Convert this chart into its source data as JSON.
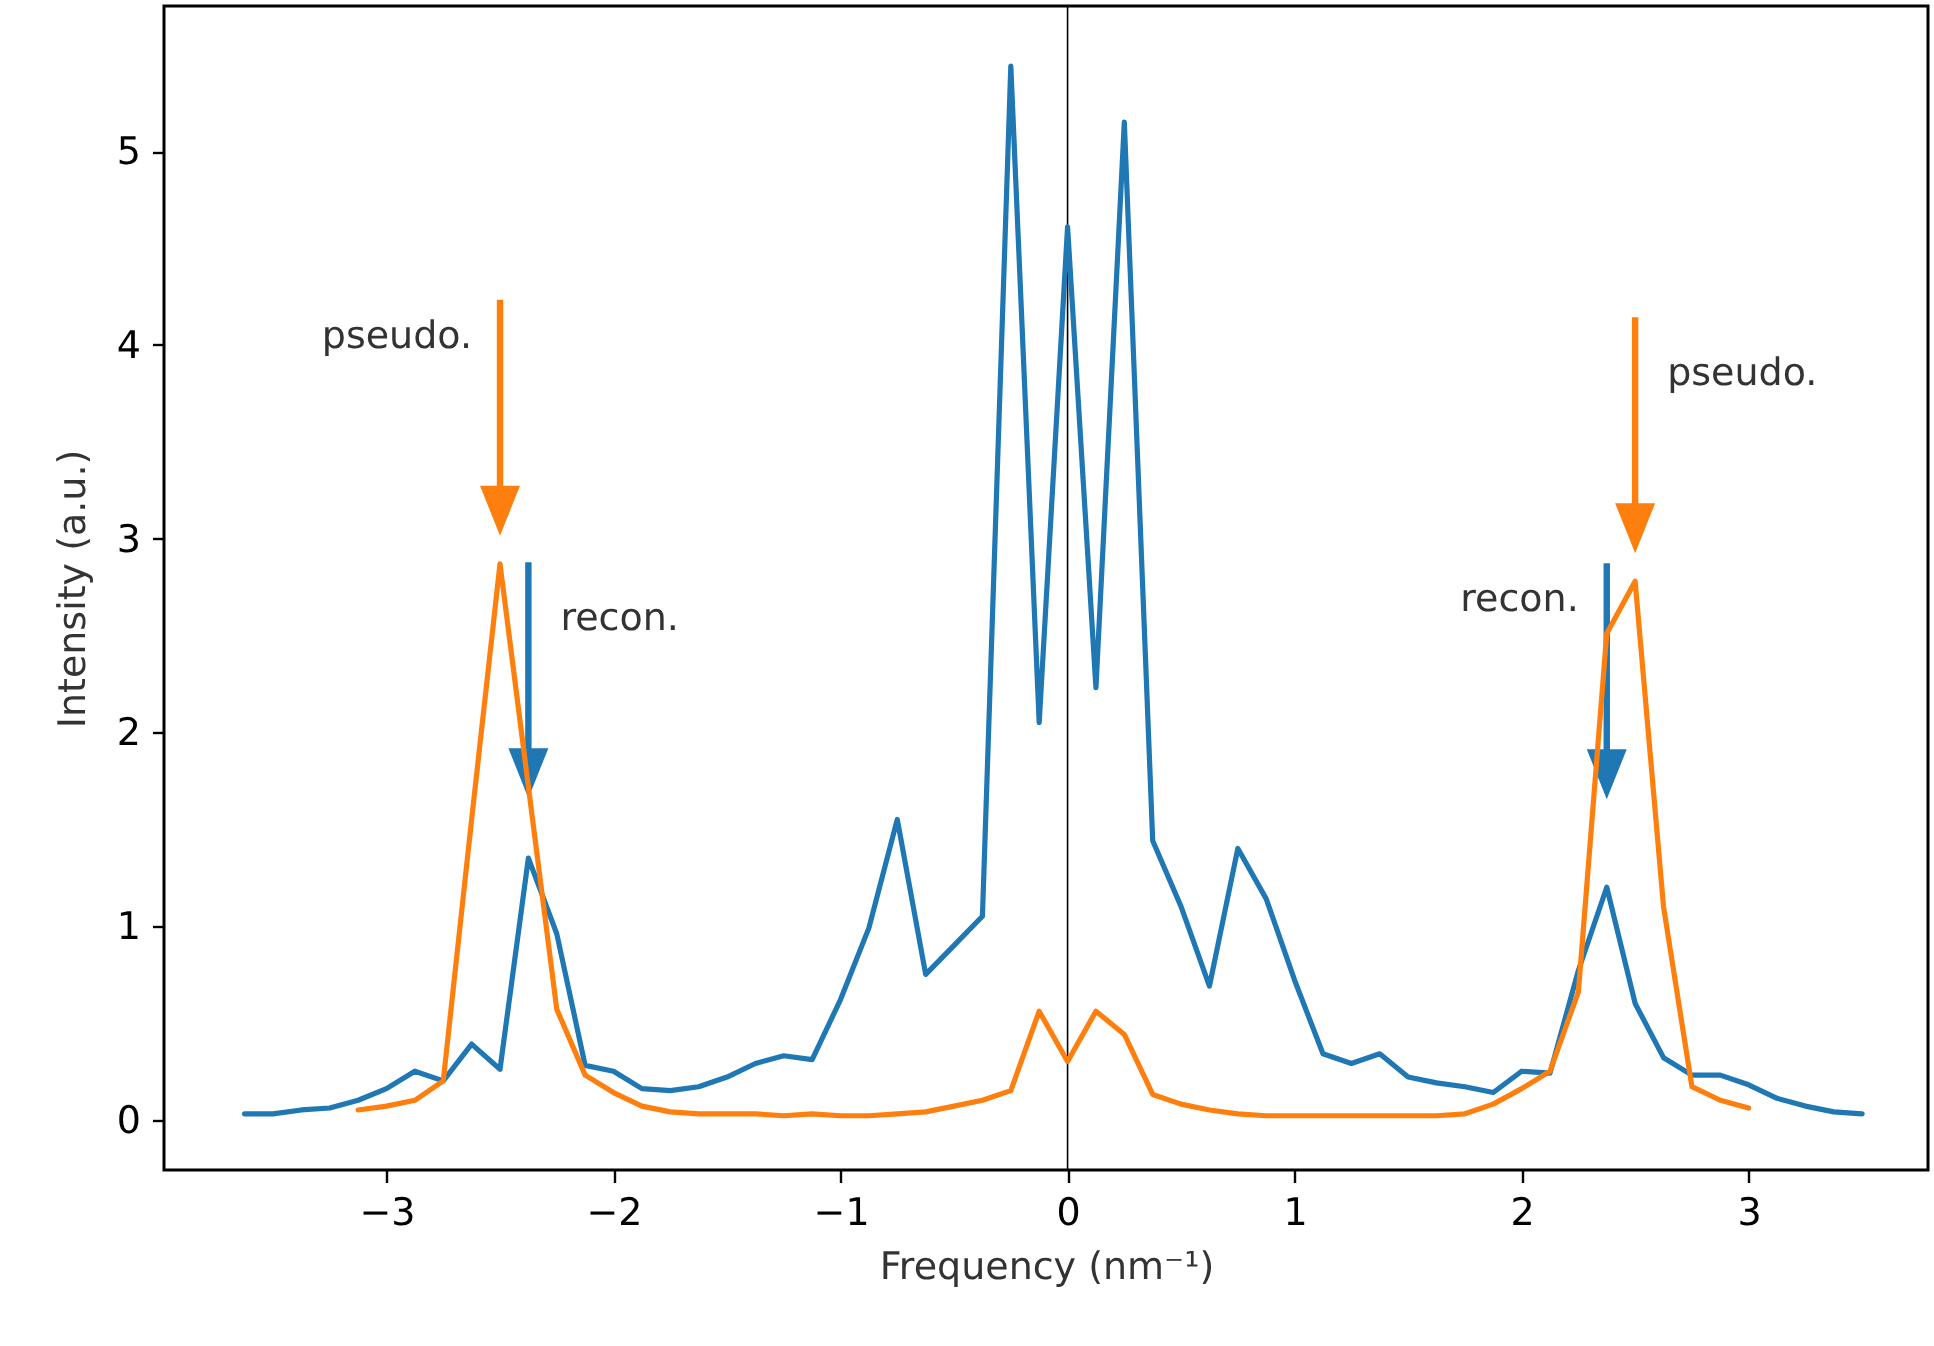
{
  "chart_data": {
    "type": "line",
    "xlabel": "Frequency (nm⁻¹)",
    "ylabel": "Intensity (a.u.)",
    "xlim": [
      -3.98,
      3.79
    ],
    "ylim": [
      -0.26,
      5.75
    ],
    "xticks": [
      -3,
      -2,
      -1,
      0,
      1,
      2,
      3
    ],
    "yticks": [
      0,
      1,
      2,
      3,
      4,
      5
    ],
    "grid": false,
    "marker": "none",
    "line_style": "solid",
    "series": [
      {
        "color": "#1f77b4",
        "x": [
          -3.625,
          -3.5,
          -3.375,
          -3.25,
          -3.125,
          -3.0,
          -2.875,
          -2.75,
          -2.625,
          -2.5,
          -2.375,
          -2.25,
          -2.125,
          -2.0,
          -1.875,
          -1.75,
          -1.625,
          -1.5,
          -1.375,
          -1.25,
          -1.125,
          -1.0,
          -0.875,
          -0.75,
          -0.625,
          -0.5,
          -0.375,
          -0.25,
          -0.125,
          0,
          0.125,
          0.25,
          0.375,
          0.5,
          0.625,
          0.75,
          0.875,
          1.0,
          1.125,
          1.25,
          1.375,
          1.5,
          1.625,
          1.75,
          1.875,
          2.0,
          2.125,
          2.25,
          2.375,
          2.5,
          2.625,
          2.75,
          2.875,
          3.0,
          3.125,
          3.25,
          3.375,
          3.5
        ],
        "values": [
          0.03,
          0.03,
          0.05,
          0.06,
          0.1,
          0.16,
          0.25,
          0.2,
          0.39,
          0.26,
          1.35,
          0.96,
          0.28,
          0.25,
          0.16,
          0.15,
          0.17,
          0.22,
          0.29,
          0.33,
          0.31,
          0.62,
          0.99,
          1.55,
          0.75,
          0.9,
          1.05,
          5.44,
          2.05,
          4.61,
          2.23,
          5.15,
          1.44,
          1.1,
          0.69,
          1.4,
          1.14,
          0.72,
          0.34,
          0.29,
          0.34,
          0.22,
          0.19,
          0.17,
          0.14,
          0.25,
          0.24,
          0.77,
          1.2,
          0.6,
          0.32,
          0.23,
          0.23,
          0.18,
          0.11,
          0.07,
          0.04,
          0.03
        ]
      },
      {
        "color": "#ff7f0e",
        "x": [
          -3.125,
          -3.0,
          -2.875,
          -2.75,
          -2.625,
          -2.5,
          -2.375,
          -2.25,
          -2.125,
          -2.0,
          -1.875,
          -1.75,
          -1.625,
          -1.5,
          -1.375,
          -1.25,
          -1.125,
          -1.0,
          -0.875,
          -0.75,
          -0.625,
          -0.5,
          -0.375,
          -0.25,
          -0.125,
          0,
          0.125,
          0.25,
          0.375,
          0.5,
          0.625,
          0.75,
          0.875,
          1.0,
          1.125,
          1.25,
          1.375,
          1.5,
          1.625,
          1.75,
          1.875,
          2.0,
          2.125,
          2.25,
          2.375,
          2.5,
          2.625,
          2.75,
          2.875,
          3.0
        ],
        "values": [
          0.05,
          0.07,
          0.1,
          0.2,
          1.55,
          2.87,
          1.72,
          0.57,
          0.23,
          0.14,
          0.07,
          0.04,
          0.03,
          0.03,
          0.03,
          0.02,
          0.03,
          0.02,
          0.02,
          0.03,
          0.04,
          0.07,
          0.1,
          0.15,
          0.56,
          0.3,
          0.56,
          0.44,
          0.13,
          0.08,
          0.05,
          0.03,
          0.02,
          0.02,
          0.02,
          0.02,
          0.02,
          0.02,
          0.02,
          0.03,
          0.08,
          0.16,
          0.25,
          0.66,
          2.51,
          2.78,
          1.1,
          0.17,
          0.1,
          0.06
        ]
      }
    ],
    "ref_lines": [
      {
        "axis": "x",
        "value": 0,
        "color": "#000000"
      }
    ],
    "annotations": [
      "pseudo.",
      "recon.",
      "recon.",
      "pseudo."
    ]
  }
}
